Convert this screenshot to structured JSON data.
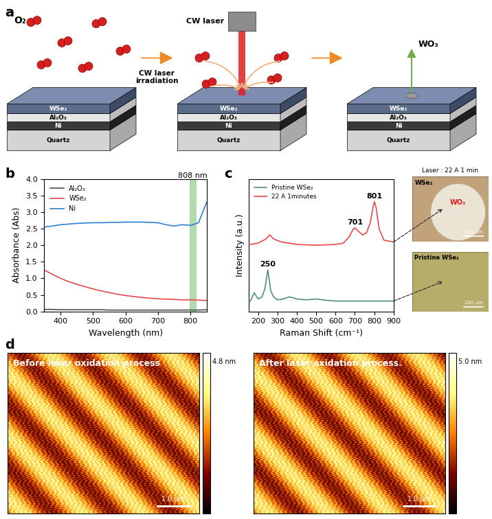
{
  "panels": [
    "a",
    "b",
    "c",
    "d"
  ],
  "schematic": {
    "gas": "O₂",
    "layers": [
      "WSe₂",
      "Al₂O₃",
      "Ni",
      "Quartz"
    ],
    "arrow_label": "CW laser\nirradiation",
    "laser_label": "CW laser",
    "product": "WO₃"
  },
  "chart_data": [
    {
      "type": "line",
      "x_label": "Wavelength (nm)",
      "y_label": "Absorbance (Abs)",
      "xlim": [
        350,
        850
      ],
      "ylim": [
        0,
        4
      ],
      "xticks": [
        400,
        500,
        600,
        700,
        800
      ],
      "yticks": [
        {
          "value": 0,
          "label": "0.0"
        },
        {
          "value": 0.5,
          "label": "0.5"
        },
        {
          "value": 1,
          "label": "1.0"
        },
        {
          "value": 1.5,
          "label": "1.5"
        },
        {
          "value": 2,
          "label": "2.0"
        },
        {
          "value": 2.5,
          "label": "2.5"
        },
        {
          "value": 3,
          "label": "3.0"
        },
        {
          "value": 3.5,
          "label": "3.5"
        },
        {
          "value": 4,
          "label": "4.0"
        }
      ],
      "legend": "upper left",
      "band": {
        "label": "808 nm",
        "range": [
          797,
          819
        ],
        "color": "#9bd39a"
      },
      "x": [
        350,
        375,
        400,
        425,
        450,
        475,
        500,
        525,
        550,
        575,
        600,
        625,
        650,
        675,
        700,
        725,
        750,
        775,
        800,
        825,
        850
      ],
      "series": [
        {
          "name": "Al₂O₃",
          "color": "#4d4d4d",
          "values": [
            0.06,
            0.06,
            0.05,
            0.05,
            0.05,
            0.05,
            0.05,
            0.05,
            0.04,
            0.04,
            0.04,
            0.04,
            0.04,
            0.04,
            0.04,
            0.04,
            0.04,
            0.04,
            0.04,
            0.04,
            0.05
          ]
        },
        {
          "name": "WSe₂",
          "color": "#e8474a",
          "values": [
            1.25,
            1.12,
            1.0,
            0.9,
            0.82,
            0.75,
            0.68,
            0.62,
            0.57,
            0.52,
            0.48,
            0.45,
            0.42,
            0.4,
            0.38,
            0.37,
            0.36,
            0.35,
            0.35,
            0.34,
            0.33
          ]
        },
        {
          "name": "Ni",
          "color": "#2f7fd6",
          "values": [
            2.55,
            2.58,
            2.62,
            2.64,
            2.66,
            2.67,
            2.68,
            2.68,
            2.69,
            2.69,
            2.7,
            2.7,
            2.7,
            2.69,
            2.68,
            2.62,
            2.58,
            2.62,
            2.6,
            2.68,
            3.3
          ]
        }
      ]
    },
    {
      "type": "line",
      "x_label": "Raman Shift (cm⁻¹)",
      "y_label": "Intensity (a.u.)",
      "xlim": [
        150,
        900
      ],
      "ylim": [
        0,
        3.2
      ],
      "xticks": [
        200,
        300,
        400,
        500,
        600,
        700,
        800,
        900
      ],
      "tick_labels": "x",
      "legend": "upper left",
      "peaks": [
        250,
        701,
        801
      ],
      "series": [
        {
          "name": "Pristine WSe₂",
          "color": "#4f8f75",
          "x": [
            160,
            180,
            200,
            220,
            235,
            245,
            250,
            255,
            265,
            280,
            300,
            330,
            360,
            380,
            400,
            450,
            500,
            550,
            600,
            650,
            700,
            750,
            800,
            850,
            900
          ],
          "values": [
            0.25,
            0.45,
            0.3,
            0.35,
            0.55,
            0.85,
            1.0,
            0.85,
            0.5,
            0.35,
            0.28,
            0.3,
            0.35,
            0.33,
            0.3,
            0.28,
            0.3,
            0.27,
            0.25,
            0.25,
            0.25,
            0.25,
            0.25,
            0.25,
            0.25
          ]
        },
        {
          "name": "22 A 1minutes",
          "color": "#e8474a",
          "x": [
            160,
            200,
            240,
            260,
            280,
            320,
            400,
            500,
            600,
            640,
            670,
            690,
            701,
            715,
            740,
            760,
            780,
            795,
            801,
            810,
            825,
            850,
            900
          ],
          "values": [
            1.62,
            1.65,
            1.75,
            1.85,
            1.75,
            1.68,
            1.62,
            1.6,
            1.62,
            1.65,
            1.8,
            1.98,
            2.02,
            1.95,
            1.85,
            1.9,
            2.15,
            2.55,
            2.65,
            2.5,
            2.0,
            1.72,
            1.68
          ]
        }
      ]
    }
  ],
  "micrographs": [
    {
      "caption": "Laser : 22 A 1 min",
      "labels": {
        "substrate": "WSe₂",
        "spot": "WO₃"
      },
      "scale_bar": "200 μm"
    },
    {
      "caption": "Pristine WSe₂",
      "scale_bar": "200 μm"
    }
  ],
  "afm": [
    {
      "title": "Before laser oxidation process",
      "colorbar_range": [
        0,
        4.8
      ],
      "colorbar_label": "4.8 nm",
      "scale_bar": "1.0 μm"
    },
    {
      "title": "After laser oxidation process.",
      "colorbar_range": [
        0,
        5.0
      ],
      "colorbar_label": "5.0 nm",
      "scale_bar": "1.0 μm"
    }
  ]
}
